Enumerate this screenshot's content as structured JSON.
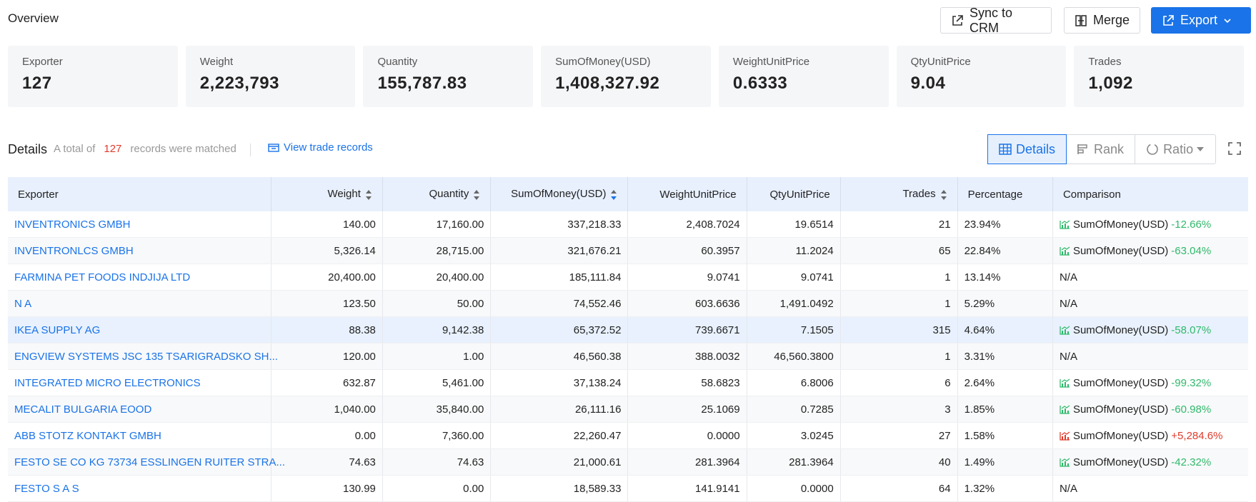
{
  "header": {
    "title": "Overview",
    "sync_label": "Sync to CRM",
    "merge_label": "Merge",
    "export_label": "Export"
  },
  "summary_cards": [
    {
      "label": "Exporter",
      "value": "127"
    },
    {
      "label": "Weight",
      "value": "2,223,793"
    },
    {
      "label": "Quantity",
      "value": "155,787.83"
    },
    {
      "label": "SumOfMoney(USD)",
      "value": "1,408,327.92"
    },
    {
      "label": "WeightUnitPrice",
      "value": "0.6333"
    },
    {
      "label": "QtyUnitPrice",
      "value": "9.04"
    },
    {
      "label": "Trades",
      "value": "1,092"
    }
  ],
  "details": {
    "title": "Details",
    "total_prefix": "A total of",
    "total_count": "127",
    "total_suffix": "records were matched",
    "view_link": "View trade records",
    "views": [
      "Details",
      "Rank",
      "Ratio"
    ]
  },
  "table": {
    "columns": [
      "Exporter",
      "Weight",
      "Quantity",
      "SumOfMoney(USD)",
      "WeightUnitPrice",
      "QtyUnitPrice",
      "Trades",
      "Percentage",
      "Comparison"
    ],
    "rows": [
      {
        "exporter": "INVENTRONICS GMBH",
        "weight": "140.00",
        "quantity": "17,160.00",
        "sum": "337,218.33",
        "wup": "2,408.7024",
        "qup": "19.6514",
        "trades": "21",
        "pct": "23.94%",
        "cmp_label": "SumOfMoney(USD)",
        "cmp_value": "-12.66%",
        "cmp_dir": "down"
      },
      {
        "exporter": "INVENTRONLCS GMBH",
        "weight": "5,326.14",
        "quantity": "28,715.00",
        "sum": "321,676.21",
        "wup": "60.3957",
        "qup": "11.2024",
        "trades": "65",
        "pct": "22.84%",
        "cmp_label": "SumOfMoney(USD)",
        "cmp_value": "-63.04%",
        "cmp_dir": "down"
      },
      {
        "exporter": "FARMINA PET FOODS INDJIJA LTD",
        "weight": "20,400.00",
        "quantity": "20,400.00",
        "sum": "185,111.84",
        "wup": "9.0741",
        "qup": "9.0741",
        "trades": "1",
        "pct": "13.14%",
        "cmp_label": "N/A",
        "cmp_value": "",
        "cmp_dir": "none"
      },
      {
        "exporter": "N A",
        "weight": "123.50",
        "quantity": "50.00",
        "sum": "74,552.46",
        "wup": "603.6636",
        "qup": "1,491.0492",
        "trades": "1",
        "pct": "5.29%",
        "cmp_label": "N/A",
        "cmp_value": "",
        "cmp_dir": "none"
      },
      {
        "exporter": "IKEA SUPPLY AG",
        "weight": "88.38",
        "quantity": "9,142.38",
        "sum": "65,372.52",
        "wup": "739.6671",
        "qup": "7.1505",
        "trades": "315",
        "pct": "4.64%",
        "cmp_label": "SumOfMoney(USD)",
        "cmp_value": "-58.07%",
        "cmp_dir": "down"
      },
      {
        "exporter": "ENGVIEW SYSTEMS JSC 135 TSARIGRADSKO SH...",
        "weight": "120.00",
        "quantity": "1.00",
        "sum": "46,560.38",
        "wup": "388.0032",
        "qup": "46,560.3800",
        "trades": "1",
        "pct": "3.31%",
        "cmp_label": "N/A",
        "cmp_value": "",
        "cmp_dir": "none"
      },
      {
        "exporter": "INTEGRATED MICRO ELECTRONICS",
        "weight": "632.87",
        "quantity": "5,461.00",
        "sum": "37,138.24",
        "wup": "58.6823",
        "qup": "6.8006",
        "trades": "6",
        "pct": "2.64%",
        "cmp_label": "SumOfMoney(USD)",
        "cmp_value": "-99.32%",
        "cmp_dir": "down"
      },
      {
        "exporter": "MECALIT BULGARIA EOOD",
        "weight": "1,040.00",
        "quantity": "35,840.00",
        "sum": "26,111.16",
        "wup": "25.1069",
        "qup": "0.7285",
        "trades": "3",
        "pct": "1.85%",
        "cmp_label": "SumOfMoney(USD)",
        "cmp_value": "-60.98%",
        "cmp_dir": "down"
      },
      {
        "exporter": "ABB STOTZ KONTAKT GMBH",
        "weight": "0.00",
        "quantity": "7,360.00",
        "sum": "22,260.47",
        "wup": "0.0000",
        "qup": "3.0245",
        "trades": "27",
        "pct": "1.58%",
        "cmp_label": "SumOfMoney(USD)",
        "cmp_value": "+5,284.6%",
        "cmp_dir": "up"
      },
      {
        "exporter": "FESTO SE CO KG 73734 ESSLINGEN RUITER STRA...",
        "weight": "74.63",
        "quantity": "74.63",
        "sum": "21,000.61",
        "wup": "281.3964",
        "qup": "281.3964",
        "trades": "40",
        "pct": "1.49%",
        "cmp_label": "SumOfMoney(USD)",
        "cmp_value": "-42.32%",
        "cmp_dir": "down"
      },
      {
        "exporter": "FESTO S A S",
        "weight": "130.99",
        "quantity": "0.00",
        "sum": "18,589.33",
        "wup": "141.9141",
        "qup": "0.0000",
        "trades": "64",
        "pct": "1.32%",
        "cmp_label": "N/A",
        "cmp_value": "",
        "cmp_dir": "none"
      }
    ]
  },
  "colors": {
    "accent": "#1a73e8",
    "negative": "#2fb96b",
    "positive": "#e03b2c"
  }
}
